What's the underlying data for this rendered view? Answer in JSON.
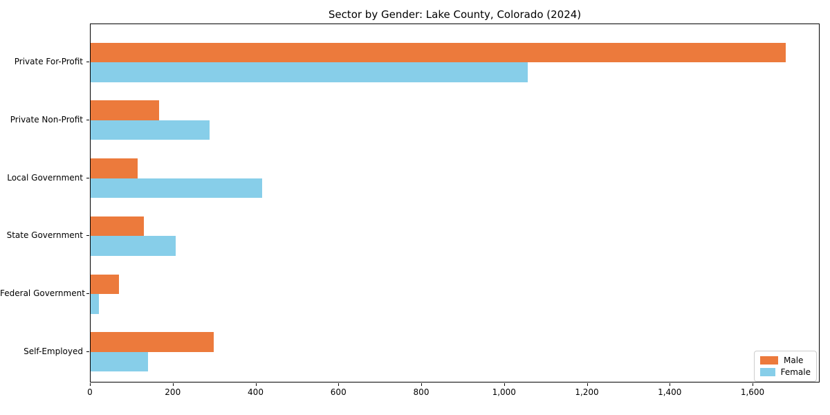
{
  "title": "Sector by Gender: Lake County, Colorado (2024)",
  "chart_data": {
    "type": "bar",
    "orientation": "horizontal",
    "title": "Sector by Gender: Lake County, Colorado (2024)",
    "categories": [
      "Private For-Profit",
      "Private Non-Profit",
      "Local Government",
      "State Government",
      "Federal Government",
      "Self-Employed"
    ],
    "series": [
      {
        "name": "Male",
        "color": "#EC7A3C",
        "values": [
          1678,
          166,
          113,
          129,
          68,
          297
        ]
      },
      {
        "name": "Female",
        "color": "#87CEE9",
        "values": [
          1055,
          287,
          415,
          205,
          20,
          139
        ]
      }
    ],
    "xlabel": "",
    "ylabel": "",
    "xlim": [
      0,
      1762
    ],
    "x_ticks": [
      0,
      200,
      400,
      600,
      800,
      1000,
      1200,
      1400,
      1600
    ],
    "x_tick_labels": [
      "0",
      "200",
      "400",
      "600",
      "800",
      "1,000",
      "1,200",
      "1,400",
      "1,600"
    ],
    "grid": false,
    "legend": {
      "position": "lower right"
    }
  }
}
